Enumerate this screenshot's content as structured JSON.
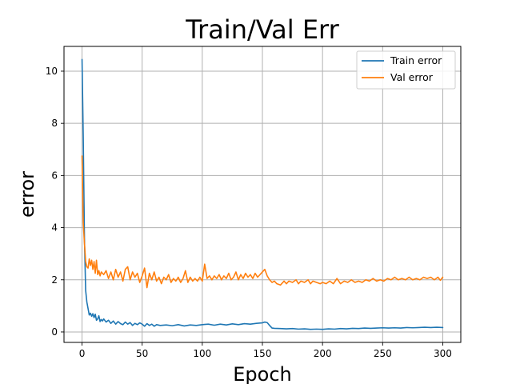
{
  "chart_data": {
    "type": "line",
    "title": "Train/Val Err",
    "xlabel": "Epoch",
    "ylabel": "error",
    "xlim": [
      -15,
      315
    ],
    "ylim": [
      -0.4,
      10.95
    ],
    "xticks": [
      0,
      50,
      100,
      150,
      200,
      250,
      300
    ],
    "yticks": [
      0,
      2,
      4,
      6,
      8,
      10
    ],
    "grid": true,
    "legend_position": "top-right",
    "series": [
      {
        "name": "Train error",
        "color": "#1f77b4",
        "points": [
          [
            0,
            10.45
          ],
          [
            1,
            7.5
          ],
          [
            2,
            3.6
          ],
          [
            3,
            1.6
          ],
          [
            4,
            1.15
          ],
          [
            5,
            0.9
          ],
          [
            6,
            0.65
          ],
          [
            7,
            0.72
          ],
          [
            8,
            0.6
          ],
          [
            9,
            0.7
          ],
          [
            10,
            0.55
          ],
          [
            11,
            0.68
          ],
          [
            12,
            0.45
          ],
          [
            13,
            0.5
          ],
          [
            14,
            0.62
          ],
          [
            15,
            0.4
          ],
          [
            16,
            0.48
          ],
          [
            17,
            0.42
          ],
          [
            18,
            0.5
          ],
          [
            20,
            0.38
          ],
          [
            22,
            0.45
          ],
          [
            24,
            0.33
          ],
          [
            26,
            0.42
          ],
          [
            28,
            0.3
          ],
          [
            30,
            0.4
          ],
          [
            32,
            0.32
          ],
          [
            34,
            0.28
          ],
          [
            36,
            0.38
          ],
          [
            38,
            0.3
          ],
          [
            40,
            0.36
          ],
          [
            42,
            0.25
          ],
          [
            44,
            0.33
          ],
          [
            46,
            0.28
          ],
          [
            48,
            0.35
          ],
          [
            50,
            0.3
          ],
          [
            52,
            0.22
          ],
          [
            54,
            0.32
          ],
          [
            56,
            0.25
          ],
          [
            58,
            0.3
          ],
          [
            60,
            0.22
          ],
          [
            62,
            0.28
          ],
          [
            65,
            0.25
          ],
          [
            70,
            0.27
          ],
          [
            75,
            0.24
          ],
          [
            80,
            0.28
          ],
          [
            85,
            0.23
          ],
          [
            90,
            0.27
          ],
          [
            95,
            0.25
          ],
          [
            100,
            0.28
          ],
          [
            105,
            0.3
          ],
          [
            110,
            0.26
          ],
          [
            115,
            0.3
          ],
          [
            120,
            0.27
          ],
          [
            125,
            0.31
          ],
          [
            130,
            0.28
          ],
          [
            135,
            0.32
          ],
          [
            140,
            0.3
          ],
          [
            145,
            0.33
          ],
          [
            150,
            0.35
          ],
          [
            152,
            0.38
          ],
          [
            154,
            0.36
          ],
          [
            156,
            0.25
          ],
          [
            158,
            0.15
          ],
          [
            160,
            0.14
          ],
          [
            165,
            0.13
          ],
          [
            170,
            0.12
          ],
          [
            175,
            0.13
          ],
          [
            180,
            0.11
          ],
          [
            185,
            0.12
          ],
          [
            190,
            0.1
          ],
          [
            195,
            0.11
          ],
          [
            200,
            0.1
          ],
          [
            205,
            0.12
          ],
          [
            210,
            0.11
          ],
          [
            215,
            0.13
          ],
          [
            220,
            0.12
          ],
          [
            225,
            0.14
          ],
          [
            230,
            0.13
          ],
          [
            235,
            0.15
          ],
          [
            240,
            0.14
          ],
          [
            245,
            0.15
          ],
          [
            250,
            0.16
          ],
          [
            255,
            0.15
          ],
          [
            260,
            0.16
          ],
          [
            265,
            0.15
          ],
          [
            270,
            0.17
          ],
          [
            275,
            0.16
          ],
          [
            280,
            0.17
          ],
          [
            285,
            0.18
          ],
          [
            290,
            0.17
          ],
          [
            295,
            0.18
          ],
          [
            300,
            0.17
          ]
        ]
      },
      {
        "name": "Val error",
        "color": "#ff7f0e",
        "points": [
          [
            0,
            6.75
          ],
          [
            1,
            4.2
          ],
          [
            2,
            3.4
          ],
          [
            3,
            2.7
          ],
          [
            4,
            2.5
          ],
          [
            5,
            2.45
          ],
          [
            6,
            2.8
          ],
          [
            7,
            2.55
          ],
          [
            8,
            2.75
          ],
          [
            9,
            2.4
          ],
          [
            10,
            2.7
          ],
          [
            11,
            2.25
          ],
          [
            12,
            2.75
          ],
          [
            13,
            2.2
          ],
          [
            14,
            2.35
          ],
          [
            15,
            2.15
          ],
          [
            16,
            2.3
          ],
          [
            18,
            2.2
          ],
          [
            20,
            2.35
          ],
          [
            22,
            2.05
          ],
          [
            24,
            2.3
          ],
          [
            26,
            2.0
          ],
          [
            28,
            2.4
          ],
          [
            30,
            2.1
          ],
          [
            32,
            2.3
          ],
          [
            34,
            1.95
          ],
          [
            36,
            2.4
          ],
          [
            38,
            2.5
          ],
          [
            40,
            2.0
          ],
          [
            42,
            2.3
          ],
          [
            44,
            2.1
          ],
          [
            46,
            2.25
          ],
          [
            48,
            1.9
          ],
          [
            50,
            2.15
          ],
          [
            52,
            2.45
          ],
          [
            54,
            1.7
          ],
          [
            56,
            2.25
          ],
          [
            58,
            2.0
          ],
          [
            60,
            2.3
          ],
          [
            62,
            1.95
          ],
          [
            64,
            2.1
          ],
          [
            66,
            1.85
          ],
          [
            68,
            2.1
          ],
          [
            70,
            2.0
          ],
          [
            72,
            2.2
          ],
          [
            74,
            1.9
          ],
          [
            76,
            2.05
          ],
          [
            78,
            1.95
          ],
          [
            80,
            2.1
          ],
          [
            82,
            1.9
          ],
          [
            84,
            2.05
          ],
          [
            86,
            2.35
          ],
          [
            88,
            1.9
          ],
          [
            90,
            2.1
          ],
          [
            92,
            1.95
          ],
          [
            94,
            2.05
          ],
          [
            96,
            1.95
          ],
          [
            98,
            2.1
          ],
          [
            100,
            1.95
          ],
          [
            102,
            2.6
          ],
          [
            104,
            2.05
          ],
          [
            106,
            2.15
          ],
          [
            108,
            2.0
          ],
          [
            110,
            2.15
          ],
          [
            112,
            2.05
          ],
          [
            114,
            2.2
          ],
          [
            116,
            2.0
          ],
          [
            118,
            2.15
          ],
          [
            120,
            2.05
          ],
          [
            122,
            2.25
          ],
          [
            124,
            2.0
          ],
          [
            126,
            2.1
          ],
          [
            128,
            2.3
          ],
          [
            130,
            2.0
          ],
          [
            132,
            2.2
          ],
          [
            134,
            2.05
          ],
          [
            136,
            2.25
          ],
          [
            138,
            2.1
          ],
          [
            140,
            2.2
          ],
          [
            142,
            2.05
          ],
          [
            144,
            2.25
          ],
          [
            146,
            2.1
          ],
          [
            148,
            2.2
          ],
          [
            150,
            2.3
          ],
          [
            152,
            2.4
          ],
          [
            154,
            2.15
          ],
          [
            156,
            2.0
          ],
          [
            158,
            1.9
          ],
          [
            160,
            1.95
          ],
          [
            162,
            1.85
          ],
          [
            165,
            1.8
          ],
          [
            168,
            1.95
          ],
          [
            170,
            1.85
          ],
          [
            172,
            1.95
          ],
          [
            175,
            1.9
          ],
          [
            178,
            2.0
          ],
          [
            180,
            1.85
          ],
          [
            182,
            1.95
          ],
          [
            185,
            1.9
          ],
          [
            188,
            2.0
          ],
          [
            190,
            1.85
          ],
          [
            192,
            1.95
          ],
          [
            195,
            1.9
          ],
          [
            198,
            1.85
          ],
          [
            200,
            1.9
          ],
          [
            203,
            1.85
          ],
          [
            206,
            1.95
          ],
          [
            209,
            1.85
          ],
          [
            212,
            2.05
          ],
          [
            215,
            1.85
          ],
          [
            218,
            1.95
          ],
          [
            221,
            1.9
          ],
          [
            224,
            2.0
          ],
          [
            227,
            1.9
          ],
          [
            230,
            1.95
          ],
          [
            233,
            1.9
          ],
          [
            236,
            2.0
          ],
          [
            239,
            1.95
          ],
          [
            242,
            2.05
          ],
          [
            245,
            1.95
          ],
          [
            248,
            2.0
          ],
          [
            251,
            1.95
          ],
          [
            254,
            2.05
          ],
          [
            257,
            2.0
          ],
          [
            260,
            2.1
          ],
          [
            263,
            2.0
          ],
          [
            266,
            2.05
          ],
          [
            269,
            2.0
          ],
          [
            272,
            2.1
          ],
          [
            275,
            2.0
          ],
          [
            278,
            2.05
          ],
          [
            281,
            2.0
          ],
          [
            284,
            2.1
          ],
          [
            287,
            2.05
          ],
          [
            290,
            2.1
          ],
          [
            293,
            2.0
          ],
          [
            296,
            2.1
          ],
          [
            298,
            1.98
          ],
          [
            300,
            2.1
          ]
        ]
      }
    ]
  }
}
